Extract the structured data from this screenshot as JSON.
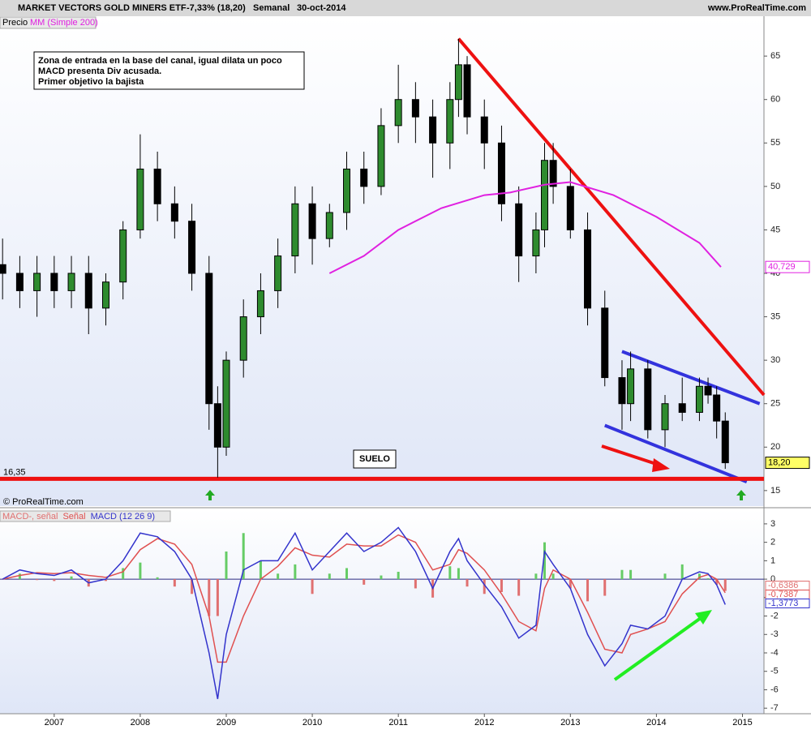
{
  "header": {
    "title": "MARKET VECTORS GOLD MINERS ETF",
    "change": "-7,33% (18,20)",
    "period": "Semanal",
    "date": "30-oct-2014",
    "site": "www.ProRealTime.com",
    "copyright": "© ProRealTime.com"
  },
  "chart_data": [
    {
      "type": "candlestick",
      "name": "Precio",
      "up_color": "#2e8b2e",
      "down_color": "#000000",
      "xlim": [
        2006.37,
        2015.25
      ],
      "ylim": [
        13.4,
        69.4
      ],
      "yticks": [
        15,
        20,
        25,
        30,
        35,
        40,
        45,
        50,
        55,
        60,
        65
      ],
      "x": [
        2006.4,
        2006.6,
        2006.8,
        2007.0,
        2007.2,
        2007.4,
        2007.6,
        2007.8,
        2008.0,
        2008.2,
        2008.4,
        2008.6,
        2008.8,
        2008.9,
        2009.0,
        2009.2,
        2009.4,
        2009.6,
        2009.8,
        2010.0,
        2010.2,
        2010.4,
        2010.6,
        2010.8,
        2011.0,
        2011.2,
        2011.4,
        2011.6,
        2011.7,
        2011.8,
        2012.0,
        2012.2,
        2012.4,
        2012.6,
        2012.7,
        2012.8,
        2013.0,
        2013.2,
        2013.4,
        2013.6,
        2013.7,
        2013.9,
        2014.1,
        2014.3,
        2014.5,
        2014.6,
        2014.7,
        2014.8
      ],
      "open": [
        41,
        40,
        38,
        40,
        38,
        40,
        36,
        39,
        45,
        52,
        48,
        46,
        40,
        25,
        20,
        30,
        35,
        38,
        42,
        48,
        44,
        47,
        52,
        50,
        57,
        60,
        58,
        55,
        60,
        64,
        58,
        55,
        48,
        42,
        45,
        53,
        50,
        45,
        36,
        28,
        25,
        29,
        22,
        25,
        24,
        27,
        26,
        23
      ],
      "high": [
        44,
        42,
        42,
        42,
        42,
        42,
        40,
        46,
        56,
        54,
        50,
        48,
        42,
        27,
        31,
        37,
        40,
        44,
        50,
        50,
        48,
        54,
        54,
        59,
        64,
        62,
        60,
        62,
        67,
        65,
        60,
        57,
        50,
        47,
        55,
        55,
        52,
        47,
        38,
        30,
        31,
        30,
        26,
        28,
        28,
        28,
        27,
        24
      ],
      "low": [
        37,
        36,
        35,
        36,
        36,
        33,
        34,
        37,
        44,
        46,
        44,
        38,
        22,
        16.5,
        19,
        28,
        33,
        36,
        40,
        41,
        43,
        45,
        48,
        49,
        55,
        55,
        51,
        52,
        58,
        56,
        52,
        46,
        39,
        40,
        43,
        48,
        44,
        34,
        27,
        22,
        23,
        21,
        20,
        23,
        23,
        25,
        21,
        17.5
      ],
      "close": [
        40,
        38,
        40,
        38,
        40,
        36,
        39,
        45,
        52,
        48,
        46,
        40,
        25,
        20,
        30,
        35,
        38,
        42,
        48,
        44,
        47,
        52,
        50,
        57,
        60,
        58,
        55,
        60,
        64,
        58,
        55,
        48,
        42,
        45,
        53,
        50,
        45,
        36,
        28,
        25,
        29,
        22,
        25,
        24,
        27,
        26,
        23,
        18.2
      ],
      "close_labels": [
        null,
        null,
        null,
        null,
        null,
        null,
        null,
        null,
        null,
        null,
        null,
        null,
        null,
        null,
        null,
        null,
        null,
        null,
        null,
        null,
        null,
        null,
        null,
        null,
        null,
        null,
        null,
        null,
        null,
        null,
        null,
        null,
        null,
        null,
        null,
        null,
        null,
        null,
        null,
        null,
        null,
        null,
        null,
        null,
        null,
        null,
        null,
        "18,20"
      ],
      "overlays": [
        {
          "name": "MM (Simple 200)",
          "color": "#e020e0",
          "x": [
            2010.2,
            2010.6,
            2011.0,
            2011.5,
            2012.0,
            2012.3,
            2012.7,
            2013.0,
            2013.5,
            2014.0,
            2014.5,
            2014.75
          ],
          "values": [
            40,
            42,
            45,
            47.5,
            49,
            49.3,
            50.2,
            50.5,
            49,
            46.5,
            43.5,
            40.729
          ],
          "value_labels": [
            null,
            null,
            null,
            null,
            null,
            null,
            null,
            null,
            null,
            null,
            null,
            "40,729"
          ]
        }
      ],
      "trendlines": [
        {
          "color": "#ee1111",
          "x": [
            2011.7,
            2015.25
          ],
          "y": [
            67,
            26
          ]
        },
        {
          "color": "#3333dd",
          "x": [
            2013.6,
            2015.2
          ],
          "y": [
            31,
            25
          ]
        },
        {
          "color": "#3333dd",
          "x": [
            2013.4,
            2015.05
          ],
          "y": [
            22.5,
            16
          ]
        }
      ],
      "support": {
        "value": 16.35,
        "label": "16,35",
        "color": "#ee1111"
      },
      "note": [
        "Zona de entrada en la base del canal, igual dilata un poco",
        "MACD presenta Div acusada.",
        "Primer objetivo la bajista"
      ],
      "floor_label": "SUELO"
    },
    {
      "type": "macd",
      "xlim": [
        2006.37,
        2015.25
      ],
      "ylim": [
        -7.3,
        3.7
      ],
      "yticks": [
        -7,
        -6,
        -5,
        -4,
        -3,
        -2,
        -1,
        0,
        1,
        2,
        3
      ],
      "xticks": [
        2007,
        2008,
        2009,
        2010,
        2011,
        2012,
        2013,
        2014,
        2015
      ],
      "x": [
        2006.4,
        2006.6,
        2006.8,
        2007.0,
        2007.2,
        2007.4,
        2007.6,
        2007.8,
        2008.0,
        2008.2,
        2008.4,
        2008.6,
        2008.8,
        2008.9,
        2009.0,
        2009.2,
        2009.4,
        2009.6,
        2009.8,
        2010.0,
        2010.2,
        2010.4,
        2010.6,
        2010.8,
        2011.0,
        2011.2,
        2011.4,
        2011.6,
        2011.7,
        2011.8,
        2012.0,
        2012.2,
        2012.4,
        2012.6,
        2012.7,
        2012.8,
        2013.0,
        2013.2,
        2013.4,
        2013.6,
        2013.7,
        2013.9,
        2014.1,
        2014.3,
        2014.5,
        2014.6,
        2014.7,
        2014.8
      ],
      "series": [
        {
          "name": "MACD-, señal",
          "style": "bars",
          "color": "#e07070",
          "alt_color": "#66cc66",
          "values": [
            0,
            0.3,
            -0.05,
            -0.1,
            0.15,
            -0.4,
            -0.1,
            0.6,
            0.9,
            0.1,
            -0.4,
            -0.8,
            -2,
            -2,
            1.5,
            2.5,
            1,
            0.3,
            0.8,
            -0.8,
            0.3,
            0.6,
            -0.3,
            0.2,
            0.4,
            -0.5,
            -1,
            0.7,
            0.6,
            -0.4,
            -0.8,
            -0.7,
            -0.9,
            0.3,
            2,
            0.3,
            -0.5,
            -1.2,
            -0.9,
            0.5,
            0.5,
            0,
            0.3,
            0.8,
            0.3,
            0.05,
            -0.3,
            -0.6386
          ],
          "value_labels": [
            null,
            null,
            null,
            null,
            null,
            null,
            null,
            null,
            null,
            null,
            null,
            null,
            null,
            null,
            null,
            null,
            null,
            null,
            null,
            null,
            null,
            null,
            null,
            null,
            null,
            null,
            null,
            null,
            null,
            null,
            null,
            null,
            null,
            null,
            null,
            null,
            null,
            null,
            null,
            null,
            null,
            null,
            null,
            null,
            null,
            null,
            null,
            "-0,6386"
          ]
        },
        {
          "name": "Señal",
          "style": "line",
          "color": "#e05050",
          "values": [
            0,
            0.2,
            0.35,
            0.3,
            0.35,
            0.2,
            0.1,
            0.4,
            1.6,
            2.2,
            1.9,
            0.8,
            -2,
            -4.5,
            -4.5,
            -2,
            0,
            0.7,
            1.7,
            1.3,
            1.2,
            1.9,
            1.8,
            1.8,
            2.4,
            2,
            0.5,
            0.8,
            1.6,
            1.4,
            0.5,
            -0.8,
            -2.3,
            -2.8,
            -0.5,
            0.5,
            0,
            -1.8,
            -3.8,
            -4,
            -3,
            -2.7,
            -2.3,
            -0.8,
            0.1,
            0.25,
            0,
            -0.7387
          ],
          "value_labels": [
            null,
            null,
            null,
            null,
            null,
            null,
            null,
            null,
            null,
            null,
            null,
            null,
            null,
            null,
            null,
            null,
            null,
            null,
            null,
            null,
            null,
            null,
            null,
            null,
            null,
            null,
            null,
            null,
            null,
            null,
            null,
            null,
            null,
            null,
            null,
            null,
            null,
            null,
            null,
            null,
            null,
            null,
            null,
            null,
            null,
            null,
            null,
            "-0,7387"
          ]
        },
        {
          "name": "MACD (12 26 9)",
          "style": "line",
          "color": "#3333cc",
          "values": [
            0,
            0.5,
            0.3,
            0.2,
            0.5,
            -0.2,
            0,
            1,
            2.5,
            2.3,
            1.5,
            0,
            -4,
            -6.5,
            -3,
            0.5,
            1,
            1,
            2.5,
            0.5,
            1.5,
            2.5,
            1.5,
            2,
            2.8,
            1.5,
            -0.5,
            1.5,
            2.2,
            1,
            -0.3,
            -1.5,
            -3.2,
            -2.5,
            1.5,
            0.8,
            -0.5,
            -3,
            -4.7,
            -3.5,
            -2.5,
            -2.7,
            -2,
            0,
            0.4,
            0.3,
            -0.3,
            -1.3773
          ],
          "value_labels": [
            null,
            null,
            null,
            null,
            null,
            null,
            null,
            null,
            null,
            null,
            null,
            null,
            null,
            null,
            null,
            null,
            null,
            null,
            null,
            null,
            null,
            null,
            null,
            null,
            null,
            null,
            null,
            null,
            null,
            null,
            null,
            null,
            null,
            null,
            null,
            null,
            null,
            null,
            null,
            null,
            null,
            null,
            null,
            null,
            null,
            null,
            null,
            "-1,3773"
          ]
        }
      ]
    }
  ]
}
